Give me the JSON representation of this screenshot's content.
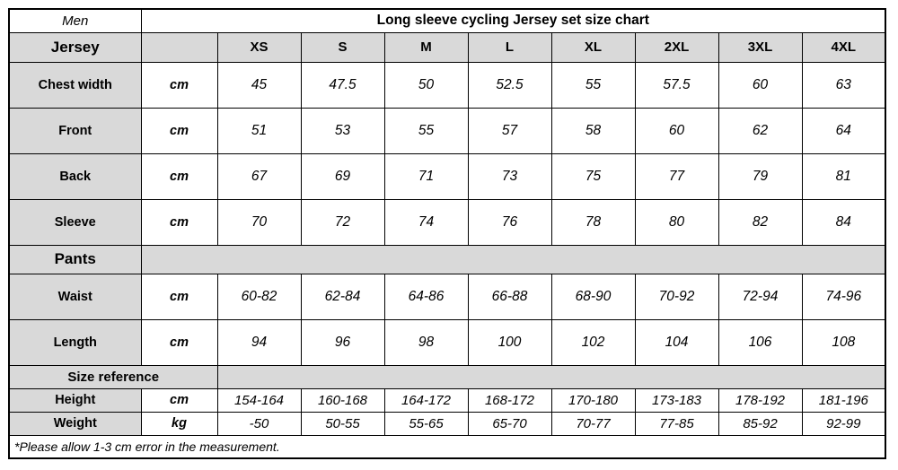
{
  "header": {
    "gender": "Men",
    "title": "Long sleeve cycling Jersey set size chart"
  },
  "sizes": [
    "XS",
    "S",
    "M",
    "L",
    "XL",
    "2XL",
    "3XL",
    "4XL"
  ],
  "jersey": {
    "label": "Jersey",
    "rows": [
      {
        "label": "Chest width",
        "unit": "cm",
        "values": [
          "45",
          "47.5",
          "50",
          "52.5",
          "55",
          "57.5",
          "60",
          "63"
        ]
      },
      {
        "label": "Front",
        "unit": "cm",
        "values": [
          "51",
          "53",
          "55",
          "57",
          "58",
          "60",
          "62",
          "64"
        ]
      },
      {
        "label": "Back",
        "unit": "cm",
        "values": [
          "67",
          "69",
          "71",
          "73",
          "75",
          "77",
          "79",
          "81"
        ]
      },
      {
        "label": "Sleeve",
        "unit": "cm",
        "values": [
          "70",
          "72",
          "74",
          "76",
          "78",
          "80",
          "82",
          "84"
        ]
      }
    ]
  },
  "pants": {
    "label": "Pants",
    "rows": [
      {
        "label": "Waist",
        "unit": "cm",
        "values": [
          "60-82",
          "62-84",
          "64-86",
          "66-88",
          "68-90",
          "70-92",
          "72-94",
          "74-96"
        ]
      },
      {
        "label": "Length",
        "unit": "cm",
        "values": [
          "94",
          "96",
          "98",
          "100",
          "102",
          "104",
          "106",
          "108"
        ]
      }
    ]
  },
  "size_reference": {
    "label": "Size reference",
    "rows": [
      {
        "label": "Height",
        "unit": "cm",
        "values": [
          "154-164",
          "160-168",
          "164-172",
          "168-172",
          "170-180",
          "173-183",
          "178-192",
          "181-196"
        ]
      },
      {
        "label": "Weight",
        "unit": "kg",
        "values": [
          "-50",
          "50-55",
          "55-65",
          "65-70",
          "70-77",
          "77-85",
          "85-92",
          "92-99"
        ]
      }
    ]
  },
  "footnote": "*Please allow 1-3 cm error in the measurement.",
  "colors": {
    "header_gray": "#d9d9d9",
    "border": "#000000",
    "background": "#ffffff"
  }
}
